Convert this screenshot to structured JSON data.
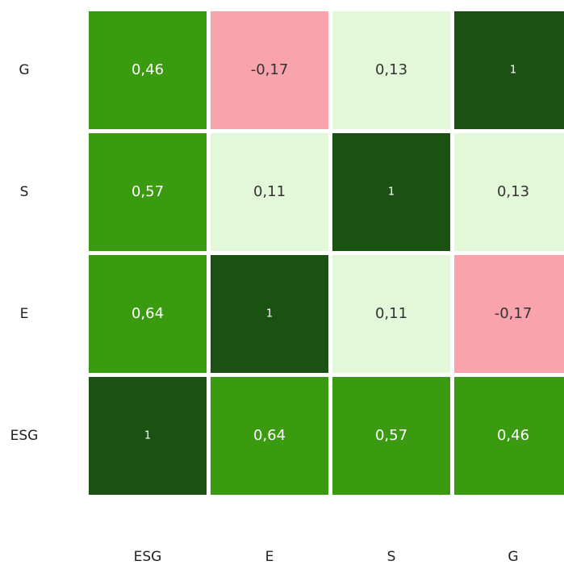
{
  "chart_data": {
    "type": "heatmap",
    "x_categories": [
      "ESG",
      "E",
      "S",
      "G"
    ],
    "y_categories": [
      "ESG",
      "E",
      "S",
      "G"
    ],
    "values": [
      [
        1,
        0.64,
        0.57,
        0.46
      ],
      [
        0.64,
        1,
        0.11,
        -0.17
      ],
      [
        0.57,
        0.11,
        1,
        0.13
      ],
      [
        0.46,
        -0.17,
        0.13,
        1
      ]
    ],
    "value_labels": [
      [
        "1",
        "0,64",
        "0,57",
        "0,46"
      ],
      [
        "0,64",
        "1",
        "0,11",
        "-0,17"
      ],
      [
        "0,57",
        "0,11",
        "1",
        "0,13"
      ],
      [
        "0,46",
        "-0,17",
        "0,13",
        "1"
      ]
    ],
    "colors": [
      [
        "#1b5214",
        "#3a9a10",
        "#3a9a10",
        "#3a9a10"
      ],
      [
        "#3a9a10",
        "#1b5214",
        "#e3f8d8",
        "#f9a3ad"
      ],
      [
        "#3a9a10",
        "#e3f8d8",
        "#1b5214",
        "#e3f8d8"
      ],
      [
        "#3a9a10",
        "#f9a3ad",
        "#e3f8d8",
        "#1b5214"
      ]
    ]
  }
}
